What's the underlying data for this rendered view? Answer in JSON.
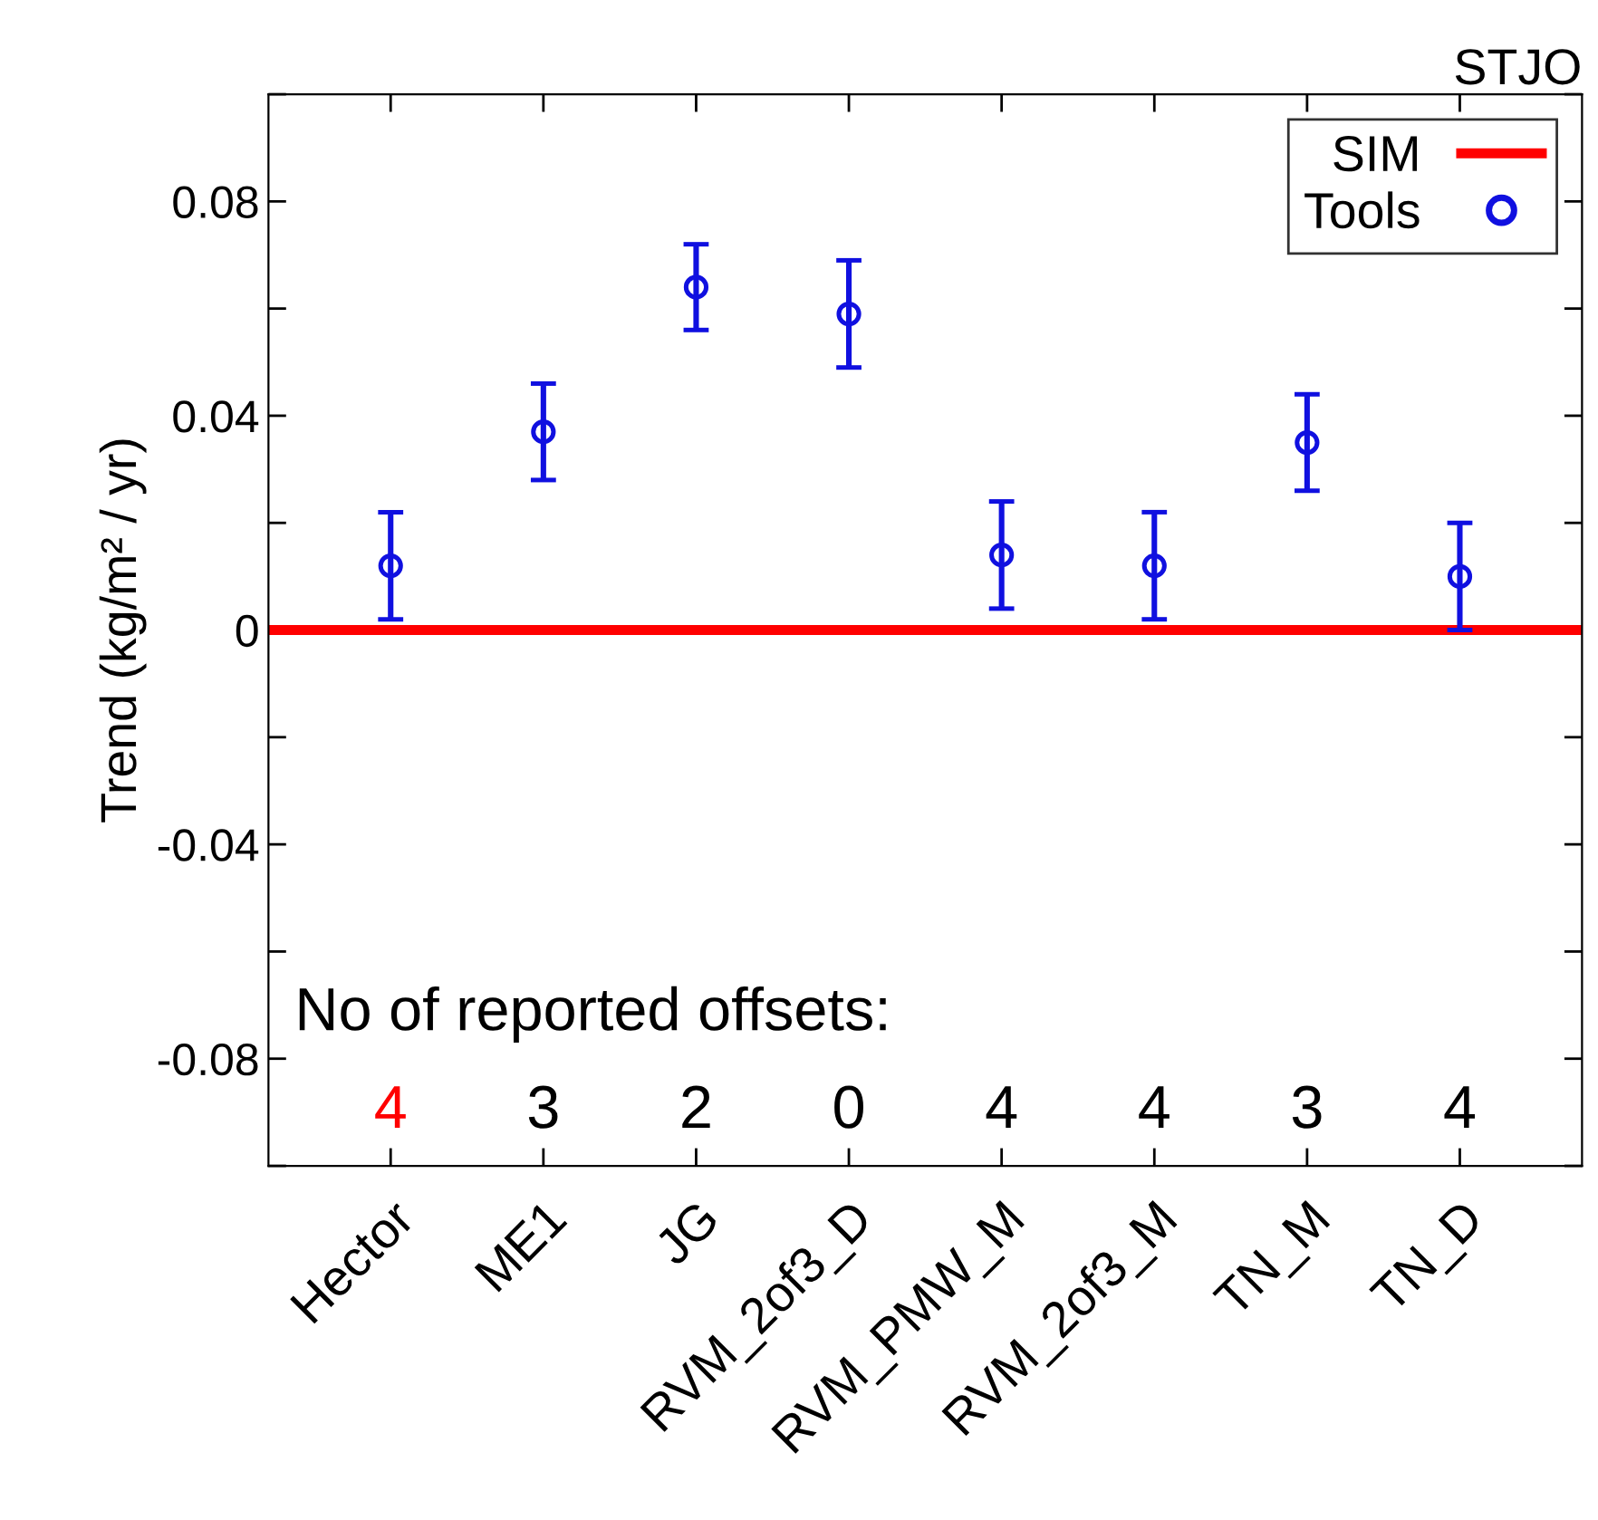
{
  "chart_data": {
    "type": "scatter",
    "title": "STJO",
    "ylabel": "Trend (kg/m² / yr)",
    "categories": [
      "Hector",
      "ME1",
      "JG",
      "RVM_2of3_D",
      "RVM_PMW_M",
      "RVM_2of3_M",
      "TN_M",
      "TN_D"
    ],
    "series": [
      {
        "name": "Tools",
        "color": "#1010e0",
        "values": [
          0.012,
          0.037,
          0.064,
          0.059,
          0.014,
          0.012,
          0.035,
          0.01
        ],
        "errors": [
          0.01,
          0.009,
          0.008,
          0.01,
          0.01,
          0.01,
          0.009,
          0.01
        ]
      }
    ],
    "ref_lines": [
      {
        "axis": "y",
        "value": 0,
        "label": "SIM",
        "color": "#ff0000"
      }
    ],
    "ylim": [
      -0.1,
      0.1
    ],
    "yticks": [
      {
        "value": -0.1,
        "label": null
      },
      -0.08,
      {
        "value": -0.06,
        "label": null
      },
      -0.04,
      {
        "value": -0.02,
        "label": null
      },
      0,
      {
        "value": 0.02,
        "label": null
      },
      0.04,
      {
        "value": 0.06,
        "label": null
      },
      0.08,
      {
        "value": 0.1,
        "label": null
      }
    ],
    "annotations": [
      "No of reported offsets:",
      "4",
      "3",
      "2",
      "0",
      "4",
      "4",
      "3",
      "4"
    ],
    "marker": "circle",
    "legend": "top right",
    "grid": false
  }
}
